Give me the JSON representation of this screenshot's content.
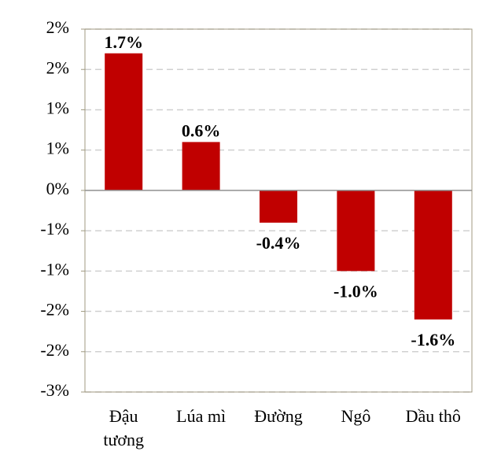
{
  "chart_data": {
    "type": "bar",
    "categories": [
      "Đậu tương",
      "Lúa mì",
      "Đường",
      "Ngô",
      "Dầu thô"
    ],
    "values": [
      1.7,
      0.6,
      -0.4,
      -1.0,
      -1.6
    ],
    "value_labels": [
      "1.7%",
      "0.6%",
      "-0.4%",
      "-1.0%",
      "-1.6%"
    ],
    "color": "#c00000",
    "ylim": [
      -2.5,
      2
    ],
    "yticks": [
      {
        "value": 2,
        "label": "2%"
      },
      {
        "value": 1.5,
        "label": "2%"
      },
      {
        "value": 1,
        "label": "1%"
      },
      {
        "value": 0.5,
        "label": "1%"
      },
      {
        "value": 0,
        "label": "0%"
      },
      {
        "value": -0.5,
        "label": "-1%"
      },
      {
        "value": -1,
        "label": "-1%"
      },
      {
        "value": -1.5,
        "label": "-2%"
      },
      {
        "value": -2,
        "label": "-2%"
      },
      {
        "value": -2.5,
        "label": "-3%"
      }
    ],
    "grid": true
  }
}
